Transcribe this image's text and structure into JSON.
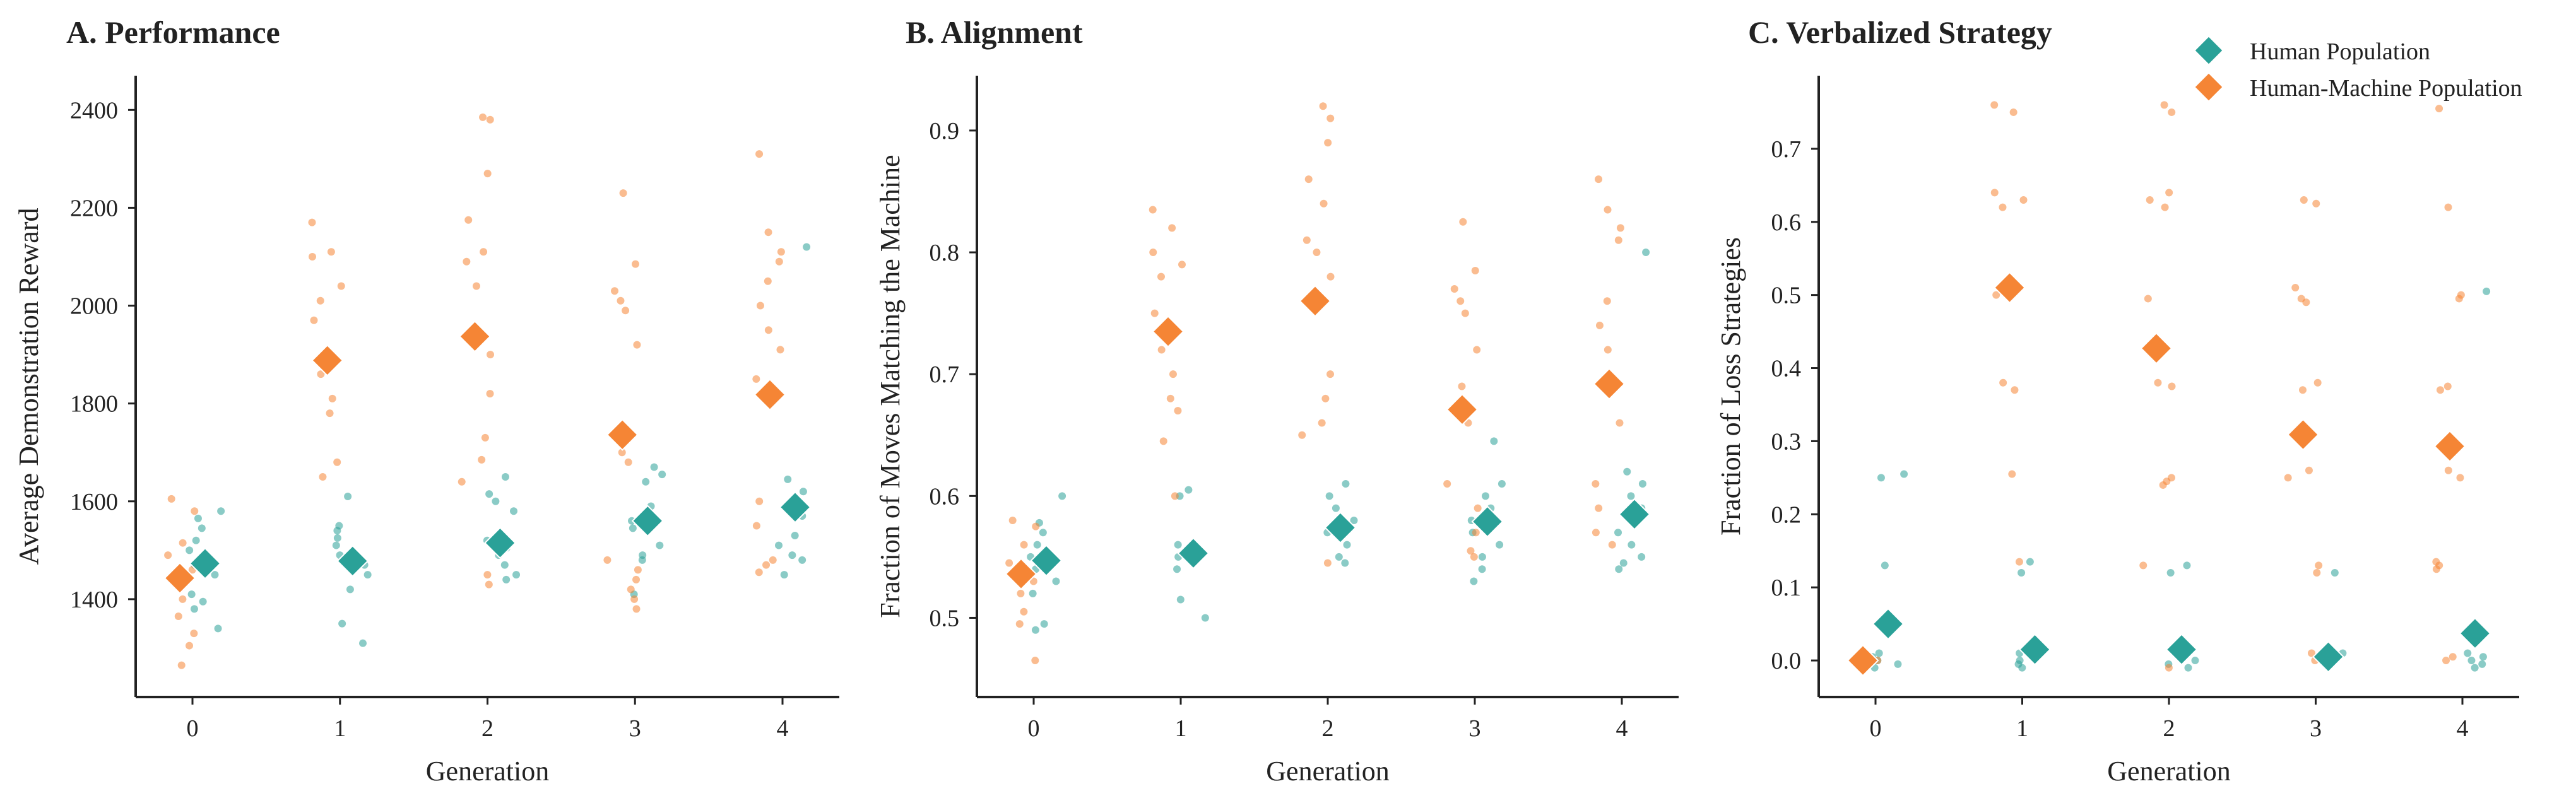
{
  "colors": {
    "human": "#2aa198",
    "hm": "#f58535",
    "axis": "#222222"
  },
  "legend": {
    "placement": "top-right",
    "items": [
      {
        "label": "Human Population",
        "series": "human"
      },
      {
        "label": "Human-Machine Population",
        "series": "hm"
      }
    ]
  },
  "chart_data": [
    {
      "type": "scatter",
      "title": "A.  Performance",
      "xlabel": "Generation",
      "ylabel": "Average Demonstration Reward",
      "categories": [
        "0",
        "1",
        "2",
        "3",
        "4"
      ],
      "ylim": [
        1200,
        2470
      ],
      "yticks": [
        1400,
        1600,
        1800,
        2000,
        2200,
        2400
      ],
      "grid": false,
      "series": [
        {
          "name": "Human Population",
          "key": "human",
          "means": [
            1473,
            1478,
            1515,
            1560,
            1588
          ],
          "points": [
            [
              1580,
              1565,
              1545,
              1520,
              1500,
              1470,
              1450,
              1410,
              1395,
              1380,
              1340
            ],
            [
              1610,
              1550,
              1540,
              1525,
              1510,
              1490,
              1470,
              1450,
              1420,
              1350,
              1310
            ],
            [
              1650,
              1615,
              1600,
              1580,
              1520,
              1505,
              1490,
              1470,
              1450,
              1440
            ],
            [
              1670,
              1655,
              1640,
              1590,
              1560,
              1545,
              1510,
              1490,
              1480,
              1410
            ],
            [
              2120,
              1645,
              1620,
              1590,
              1570,
              1530,
              1510,
              1490,
              1480,
              1450
            ]
          ]
        },
        {
          "name": "Human-Machine Population",
          "key": "hm",
          "means": [
            1443,
            1888,
            1937,
            1736,
            1818
          ],
          "points": [
            [
              1605,
              1580,
              1515,
              1490,
              1460,
              1430,
              1400,
              1365,
              1330,
              1305,
              1265
            ],
            [
              2170,
              2110,
              2100,
              2040,
              2010,
              1970,
              1860,
              1810,
              1780,
              1680,
              1650
            ],
            [
              2385,
              2380,
              2270,
              2175,
              2110,
              2090,
              2040,
              1900,
              1820,
              1730,
              1685,
              1640,
              1450,
              1430
            ],
            [
              2230,
              2085,
              2030,
              2010,
              1990,
              1920,
              1700,
              1680,
              1480,
              1460,
              1440,
              1420,
              1400,
              1380
            ],
            [
              2310,
              2150,
              2110,
              2090,
              2050,
              2000,
              1950,
              1910,
              1850,
              1600,
              1550,
              1480,
              1470,
              1455
            ]
          ]
        }
      ]
    },
    {
      "type": "scatter",
      "title": "B.  Alignment",
      "xlabel": "Generation",
      "ylabel": "Fraction of Moves Matching the Machine",
      "categories": [
        "0",
        "1",
        "2",
        "3",
        "4"
      ],
      "ylim": [
        0.435,
        0.945
      ],
      "yticks": [
        0.5,
        0.6,
        0.7,
        0.8,
        0.9
      ],
      "grid": false,
      "series": [
        {
          "name": "Human Population",
          "key": "human",
          "means": [
            0.547,
            0.553,
            0.574,
            0.579,
            0.585
          ],
          "points": [
            [
              0.6,
              0.578,
              0.57,
              0.56,
              0.55,
              0.54,
              0.53,
              0.52,
              0.495,
              0.49
            ],
            [
              0.605,
              0.6,
              0.56,
              0.55,
              0.54,
              0.515,
              0.5
            ],
            [
              0.61,
              0.6,
              0.59,
              0.58,
              0.57,
              0.56,
              0.55,
              0.545
            ],
            [
              0.645,
              0.61,
              0.6,
              0.59,
              0.58,
              0.57,
              0.56,
              0.55,
              0.54,
              0.53
            ],
            [
              0.8,
              0.62,
              0.61,
              0.6,
              0.59,
              0.58,
              0.57,
              0.56,
              0.55,
              0.545,
              0.54
            ]
          ]
        },
        {
          "name": "Human-Machine Population",
          "key": "hm",
          "means": [
            0.536,
            0.735,
            0.76,
            0.671,
            0.692
          ],
          "points": [
            [
              0.58,
              0.575,
              0.56,
              0.545,
              0.53,
              0.52,
              0.505,
              0.495,
              0.465
            ],
            [
              0.835,
              0.82,
              0.8,
              0.79,
              0.78,
              0.75,
              0.72,
              0.7,
              0.68,
              0.67,
              0.645,
              0.6
            ],
            [
              0.92,
              0.91,
              0.89,
              0.86,
              0.84,
              0.81,
              0.8,
              0.78,
              0.7,
              0.68,
              0.66,
              0.65,
              0.545
            ],
            [
              0.825,
              0.785,
              0.77,
              0.76,
              0.75,
              0.72,
              0.69,
              0.66,
              0.61,
              0.59,
              0.57,
              0.555,
              0.55
            ],
            [
              0.86,
              0.835,
              0.82,
              0.81,
              0.76,
              0.74,
              0.72,
              0.66,
              0.61,
              0.59,
              0.57,
              0.56
            ]
          ]
        }
      ]
    },
    {
      "type": "scatter",
      "title": "C.  Verbalized Strategy",
      "xlabel": "Generation",
      "ylabel": "Fraction of Loss Strategies",
      "categories": [
        "0",
        "1",
        "2",
        "3",
        "4"
      ],
      "ylim": [
        -0.05,
        0.8
      ],
      "yticks": [
        0.0,
        0.1,
        0.2,
        0.3,
        0.4,
        0.5,
        0.6,
        0.7
      ],
      "grid": false,
      "series": [
        {
          "name": "Human Population",
          "key": "human",
          "means": [
            0.05,
            0.015,
            0.015,
            0.005,
            0.037
          ],
          "points": [
            [
              0.255,
              0.25,
              0.13,
              0.01,
              0.005,
              0.0,
              -0.005,
              -0.01
            ],
            [
              0.135,
              0.12,
              0.01,
              0.0,
              -0.005,
              -0.01
            ],
            [
              0.13,
              0.12,
              0.01,
              0.0,
              -0.005,
              -0.01
            ],
            [
              0.12,
              0.01,
              0.0,
              -0.005
            ],
            [
              0.505,
              0.01,
              0.005,
              0.0,
              -0.005,
              -0.01
            ]
          ]
        },
        {
          "name": "Human-Machine Population",
          "key": "hm",
          "means": [
            0.0,
            0.51,
            0.427,
            0.309,
            0.293
          ],
          "points": [
            [
              0.0,
              0.0,
              0.0
            ],
            [
              0.76,
              0.75,
              0.64,
              0.63,
              0.62,
              0.5,
              0.38,
              0.37,
              0.255,
              0.135
            ],
            [
              0.76,
              0.75,
              0.64,
              0.63,
              0.62,
              0.495,
              0.38,
              0.375,
              0.25,
              0.245,
              0.24,
              0.13,
              -0.01
            ],
            [
              0.63,
              0.625,
              0.51,
              0.495,
              0.49,
              0.38,
              0.37,
              0.26,
              0.25,
              0.13,
              0.12,
              0.01,
              0.0
            ],
            [
              0.755,
              0.62,
              0.5,
              0.495,
              0.375,
              0.37,
              0.26,
              0.25,
              0.135,
              0.13,
              0.125,
              0.005,
              0.0
            ]
          ]
        }
      ]
    }
  ]
}
